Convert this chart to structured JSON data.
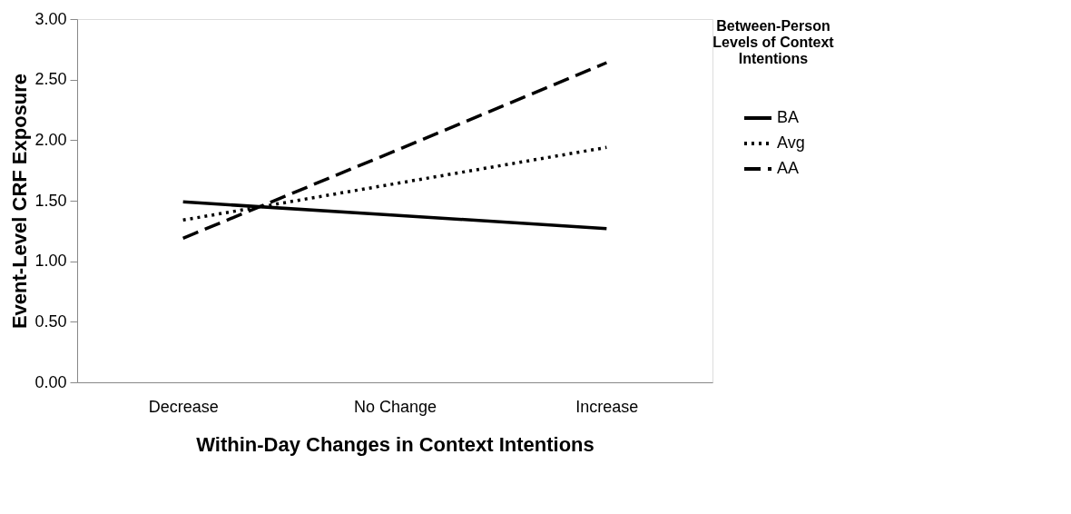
{
  "chart_data": {
    "type": "line",
    "xlabel": "Within-Day Changes in Context Intentions",
    "ylabel": "Event-Level CRF Exposure",
    "legend_title": "Between-Person Levels of Context Intentions",
    "categories": [
      "Decrease",
      "No Change",
      "Increase"
    ],
    "series": [
      {
        "name": "BA",
        "color": "#000000",
        "line_style": "solid",
        "values": [
          1.49,
          1.38,
          1.27
        ]
      },
      {
        "name": "Avg",
        "color": "#000000",
        "line_style": "dotted",
        "values": [
          1.34,
          1.64,
          1.94
        ]
      },
      {
        "name": "AA",
        "color": "#000000",
        "line_style": "dashed",
        "values": [
          1.19,
          1.91,
          2.64
        ]
      }
    ],
    "ylim": [
      0,
      3
    ],
    "yticks": [
      {
        "value": 0,
        "label": "0.00"
      },
      {
        "value": 0.5,
        "label": "0.50"
      },
      {
        "value": 1,
        "label": "1.00"
      },
      {
        "value": 1.5,
        "label": "1.50"
      },
      {
        "value": 2,
        "label": "2.00"
      },
      {
        "value": 2.5,
        "label": "2.50"
      },
      {
        "value": 3,
        "label": "3.00"
      }
    ],
    "grid": false,
    "legend": "right",
    "marker": "none"
  }
}
